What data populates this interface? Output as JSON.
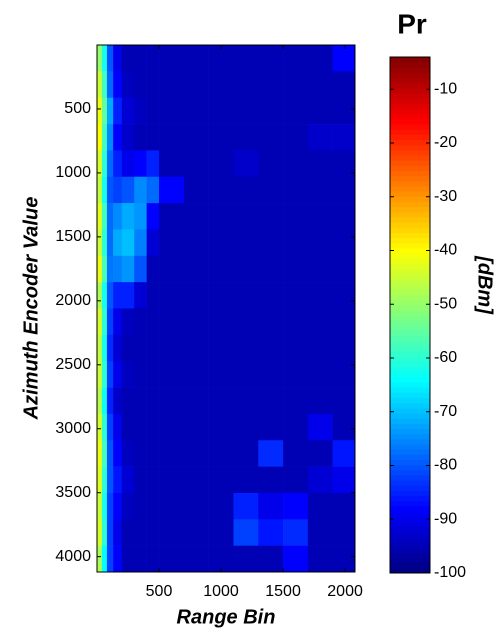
{
  "chart_data": {
    "type": "heatmap",
    "title": "Pr",
    "xlabel": "Range Bin",
    "ylabel": "Azimuth Encoder Value",
    "colorbar_label": "[dBm]",
    "colormap": "jet",
    "y_reversed": true,
    "xlim": [
      0,
      2080
    ],
    "xticks": [
      500,
      1000,
      1500,
      2000
    ],
    "ylim": [
      0,
      4120
    ],
    "yticks": [
      500,
      1000,
      1500,
      2000,
      2500,
      3000,
      3500,
      4000
    ],
    "clim": [
      -100,
      -4
    ],
    "cticks": [
      -10,
      -20,
      -30,
      -40,
      -50,
      -60,
      -70,
      -80,
      -90,
      -100
    ],
    "xbins": [
      0,
      40,
      80,
      130,
      200,
      300,
      400,
      500,
      700,
      900,
      1100,
      1300,
      1500,
      1700,
      1900,
      2080
    ],
    "ybins": [
      0,
      206,
      412,
      618,
      824,
      1030,
      1236,
      1442,
      1648,
      1854,
      2060,
      2266,
      2472,
      2678,
      2884,
      3090,
      3296,
      3502,
      3708,
      3914,
      4120
    ],
    "z": [
      [
        -50,
        -62,
        -80,
        -90,
        -95,
        -95,
        -95,
        -95,
        -95,
        -95,
        -95,
        -95,
        -95,
        -95,
        -88
      ],
      [
        -45,
        -58,
        -78,
        -88,
        -94,
        -95,
        -95,
        -95,
        -95,
        -95,
        -95,
        -95,
        -95,
        -95,
        -95
      ],
      [
        -42,
        -55,
        -72,
        -85,
        -92,
        -94,
        -95,
        -95,
        -95,
        -95,
        -95,
        -95,
        -95,
        -95,
        -95
      ],
      [
        -40,
        -58,
        -75,
        -88,
        -93,
        -95,
        -95,
        -95,
        -95,
        -95,
        -95,
        -95,
        -95,
        -93,
        -93
      ],
      [
        -44,
        -60,
        -78,
        -85,
        -90,
        -88,
        -85,
        -95,
        -95,
        -95,
        -93,
        -95,
        -95,
        -95,
        -95
      ],
      [
        -46,
        -62,
        -80,
        -82,
        -80,
        -75,
        -78,
        -88,
        -95,
        -95,
        -95,
        -95,
        -95,
        -95,
        -95
      ],
      [
        -43,
        -58,
        -78,
        -75,
        -72,
        -74,
        -88,
        -95,
        -95,
        -95,
        -95,
        -95,
        -95,
        -95,
        -95
      ],
      [
        -45,
        -60,
        -78,
        -72,
        -70,
        -76,
        -92,
        -95,
        -95,
        -95,
        -95,
        -95,
        -95,
        -95,
        -95
      ],
      [
        -42,
        -57,
        -77,
        -76,
        -74,
        -80,
        -95,
        -95,
        -95,
        -95,
        -95,
        -95,
        -95,
        -95,
        -95
      ],
      [
        -48,
        -62,
        -80,
        -85,
        -85,
        -92,
        -95,
        -95,
        -95,
        -95,
        -95,
        -95,
        -95,
        -95,
        -95
      ],
      [
        -44,
        -60,
        -82,
        -90,
        -94,
        -95,
        -95,
        -95,
        -95,
        -95,
        -95,
        -95,
        -95,
        -95,
        -95
      ],
      [
        -46,
        -62,
        -84,
        -92,
        -95,
        -95,
        -95,
        -95,
        -95,
        -95,
        -95,
        -95,
        -95,
        -95,
        -95
      ],
      [
        -45,
        -60,
        -82,
        -90,
        -94,
        -95,
        -95,
        -95,
        -95,
        -95,
        -95,
        -95,
        -95,
        -95,
        -95
      ],
      [
        -47,
        -63,
        -85,
        -93,
        -95,
        -95,
        -95,
        -95,
        -95,
        -95,
        -95,
        -95,
        -95,
        -95,
        -95
      ],
      [
        -44,
        -60,
        -82,
        -90,
        -95,
        -95,
        -95,
        -95,
        -95,
        -95,
        -95,
        -95,
        -95,
        -90,
        -95
      ],
      [
        -42,
        -58,
        -80,
        -88,
        -94,
        -95,
        -95,
        -95,
        -95,
        -95,
        -95,
        -84,
        -95,
        -95,
        -86
      ],
      [
        -43,
        -60,
        -80,
        -86,
        -92,
        -95,
        -95,
        -95,
        -95,
        -95,
        -95,
        -95,
        -95,
        -92,
        -90
      ],
      [
        -45,
        -62,
        -82,
        -88,
        -94,
        -95,
        -95,
        -95,
        -95,
        -95,
        -85,
        -90,
        -88,
        -95,
        -95
      ],
      [
        -44,
        -60,
        -82,
        -90,
        -95,
        -95,
        -95,
        -95,
        -95,
        -95,
        -82,
        -86,
        -84,
        -95,
        -95
      ],
      [
        -48,
        -64,
        -82,
        -88,
        -95,
        -95,
        -95,
        -95,
        -95,
        -95,
        -95,
        -95,
        -88,
        -95,
        -95
      ]
    ]
  }
}
